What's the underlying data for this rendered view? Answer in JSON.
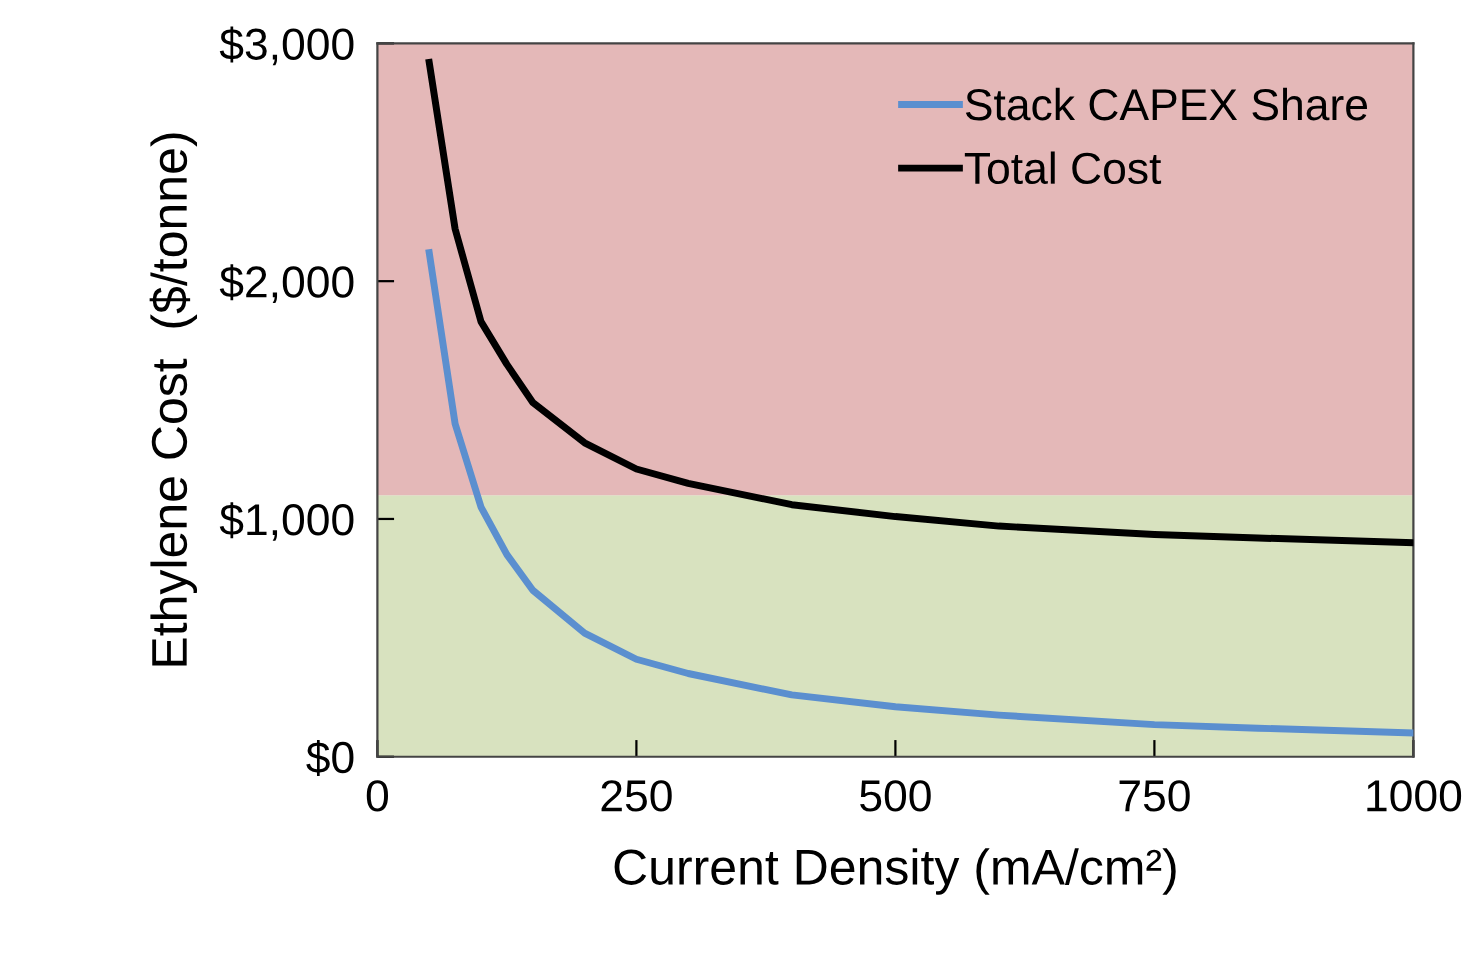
{
  "chart_data": {
    "type": "line",
    "xlabel": "Current Density (mA/cm²)",
    "ylabel": "Ethylene Cost  ($/tonne)",
    "x": [
      50,
      75,
      100,
      125,
      150,
      200,
      250,
      300,
      400,
      500,
      600,
      750,
      850,
      1000
    ],
    "series": [
      {
        "name": "Stack CAPEX Share",
        "color": "#5b8fcf",
        "values": [
          2120,
          1400,
          1050,
          850,
          700,
          520,
          410,
          350,
          260,
          210,
          175,
          135,
          120,
          100
        ]
      },
      {
        "name": "Total Cost",
        "color": "#000000",
        "values": [
          2920,
          2220,
          1830,
          1650,
          1490,
          1320,
          1210,
          1150,
          1060,
          1010,
          970,
          935,
          920,
          900
        ]
      }
    ],
    "xlim": [
      0,
      1000
    ],
    "xticks": [
      0,
      250,
      500,
      750,
      1000
    ],
    "ylim": [
      0,
      3000
    ],
    "yticks": [
      {
        "value": 0,
        "label": "$0"
      },
      {
        "value": 1000,
        "label": "$1,000"
      },
      {
        "value": 2000,
        "label": "$2,000"
      },
      {
        "value": 3000,
        "label": "$3,000"
      }
    ],
    "bands": [
      {
        "axis": "y",
        "from": 0,
        "to": 1100,
        "color": "#d8e2bf"
      },
      {
        "axis": "y",
        "from": 1100,
        "to": 3000,
        "color": "#e4b8b8"
      }
    ],
    "grid": false,
    "legend": "top right",
    "marker": "none",
    "line_style": "solid"
  }
}
